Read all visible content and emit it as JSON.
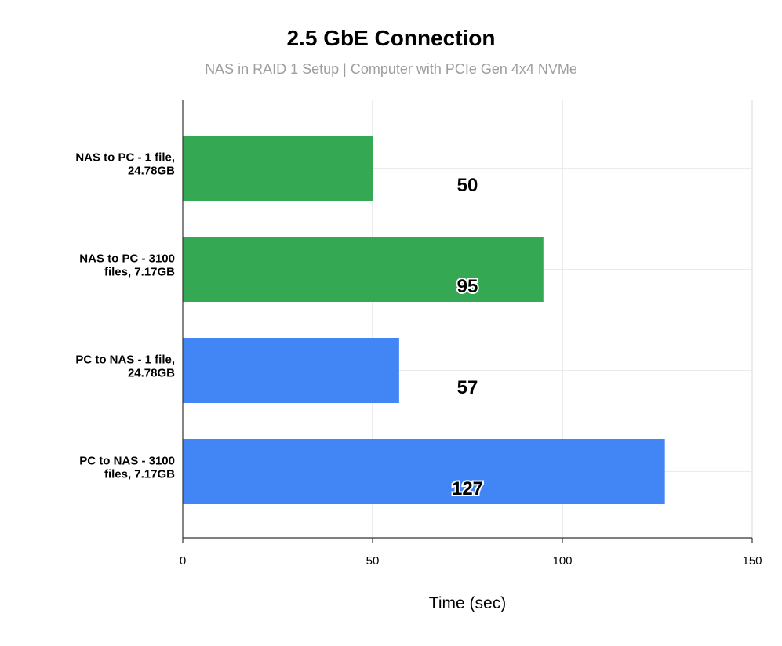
{
  "chart_data": {
    "type": "bar",
    "orientation": "horizontal",
    "title": "2.5 GbE Connection",
    "subtitle": "NAS in RAID 1 Setup | Computer with PCIe Gen 4x4 NVMe",
    "xlabel": "Time (sec)",
    "ylabel": "",
    "xlim": [
      0,
      150
    ],
    "xticks": [
      0,
      50,
      100,
      150
    ],
    "grid": true,
    "categories": [
      [
        "NAS to PC - 1 file,",
        "24.78GB"
      ],
      [
        "NAS to PC - 3100",
        "files, 7.17GB"
      ],
      [
        "PC to NAS - 1 file,",
        "24.78GB"
      ],
      [
        "PC to NAS - 3100",
        "files, 7.17GB"
      ]
    ],
    "values": [
      50,
      95,
      57,
      127
    ],
    "colors": [
      "#34a853",
      "#34a853",
      "#4285f4",
      "#4285f4"
    ],
    "data_labels": [
      "50",
      "95",
      "57",
      "127"
    ]
  }
}
